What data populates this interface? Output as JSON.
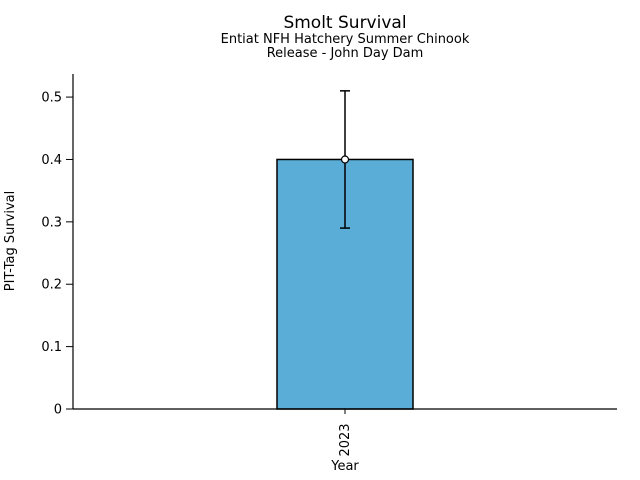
{
  "header": {
    "title": "Smolt Survival",
    "subtitle_line1": "Entiat NFH Hatchery Summer Chinook",
    "subtitle_line2": "Release - John Day Dam"
  },
  "chart_data": {
    "type": "bar",
    "title": "Smolt Survival",
    "subtitle": [
      "Entiat NFH Hatchery Summer Chinook",
      "Release - John Day Dam"
    ],
    "xlabel": "Year",
    "ylabel": "PIT-Tag Survival",
    "categories": [
      "2023"
    ],
    "values": [
      0.4
    ],
    "error_low": [
      0.29
    ],
    "error_high": [
      0.51
    ],
    "ytick_values": [
      0,
      0.1,
      0.2,
      0.3,
      0.4,
      0.5
    ],
    "ytick_labels": [
      "0",
      "0.1",
      "0.2",
      "0.3",
      "0.4",
      "0.5"
    ],
    "ylim": [
      0,
      0.537
    ],
    "grid": false,
    "legend": "none",
    "marker": "open-circle",
    "x_tick_rotation": 90,
    "colors": {
      "bar_fill": "#5AADD6",
      "bar_edge": "#000000",
      "error_bar": "#000000",
      "marker_fill": "#ffffff",
      "marker_edge": "#000000",
      "axis": "#000000",
      "text": "#000000",
      "background": "#ffffff"
    }
  }
}
